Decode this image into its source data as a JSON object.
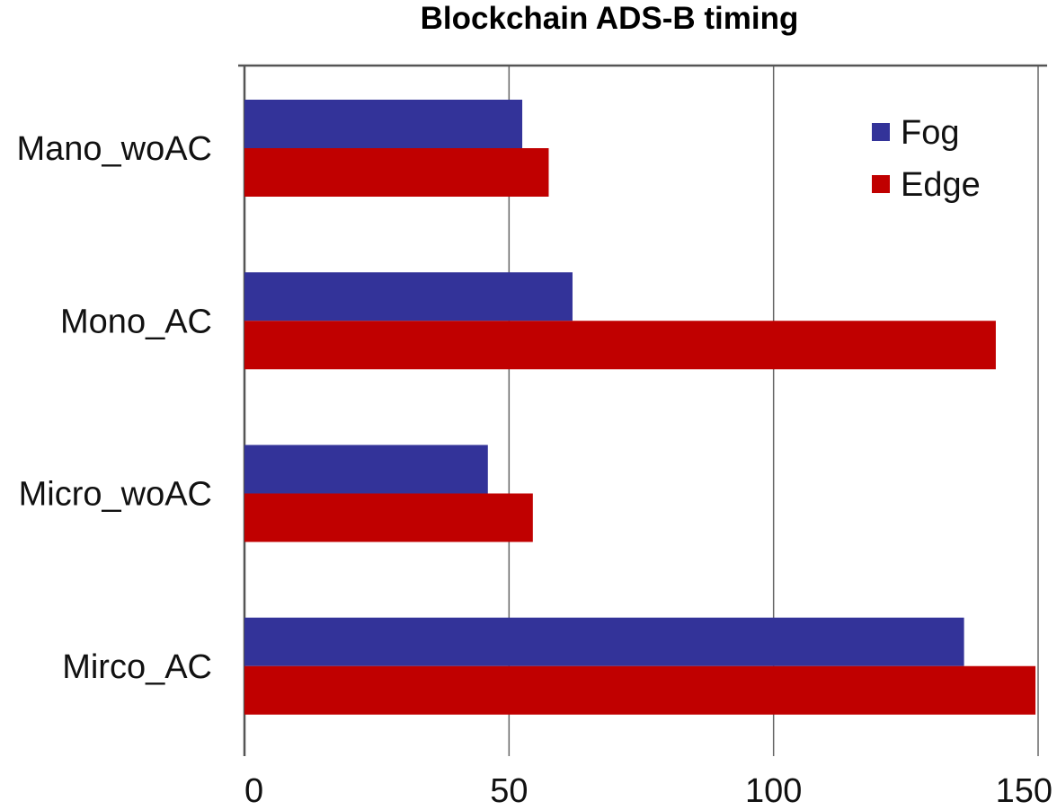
{
  "chart_data": {
    "type": "bar",
    "orientation": "horizontal",
    "title": "Blockchain ADS-B timing",
    "xlabel": "",
    "ylabel": "",
    "xlim": [
      0,
      150
    ],
    "ticks": [
      "0",
      "50",
      "100",
      "150"
    ],
    "tick_values": [
      0,
      50,
      100,
      150
    ],
    "grid": "vertical",
    "legend_position": "top-right",
    "categories": [
      "Mano_woAC",
      "Mono_AC",
      "Micro_woAC",
      "Mirco_AC"
    ],
    "series": [
      {
        "name": "Fog",
        "color": "#333399",
        "values": [
          52.5,
          62,
          46,
          136
        ]
      },
      {
        "name": "Edge",
        "color": "#C00000",
        "values": [
          57.5,
          142,
          54.5,
          149.5
        ]
      }
    ]
  }
}
